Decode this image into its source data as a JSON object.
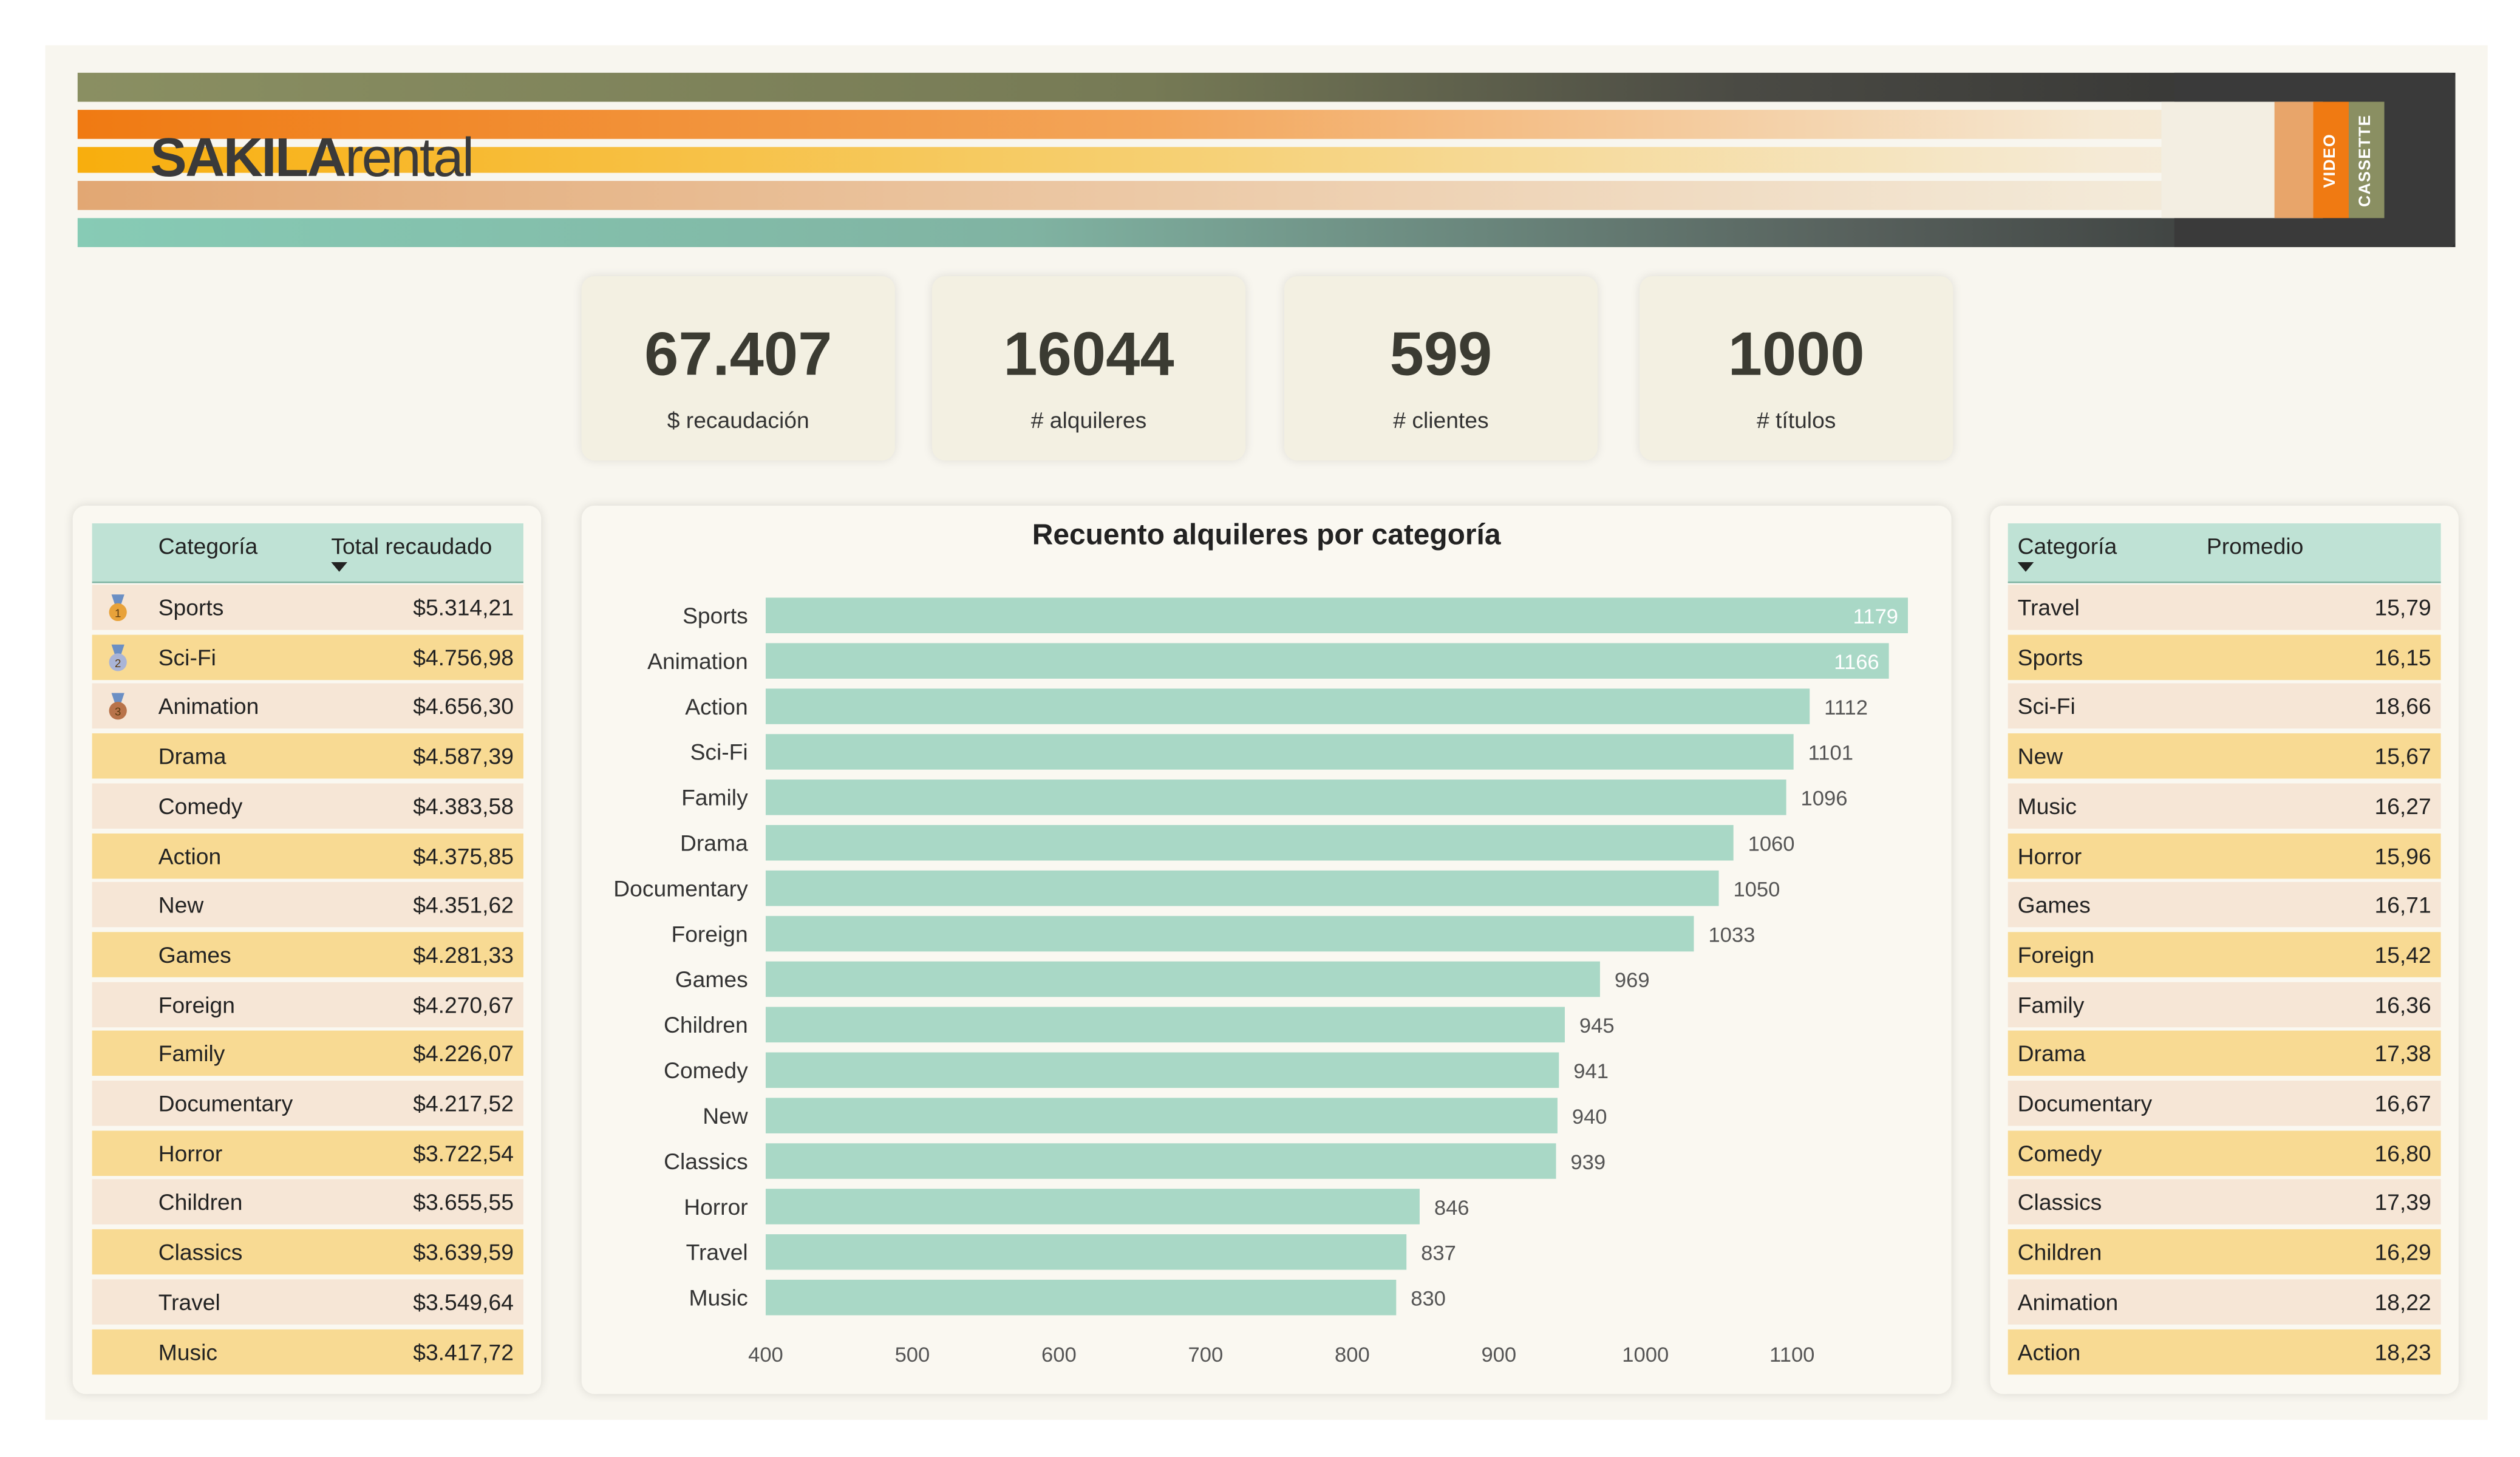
{
  "header": {
    "logo_bold": "SAKILA",
    "logo_light": "rental",
    "cassette_label_1": "VIDEO",
    "cassette_label_2": "CASSETTE"
  },
  "kpis": [
    {
      "value": "67.407",
      "label": "$ recaudación"
    },
    {
      "value": "16044",
      "label": "# alquileres"
    },
    {
      "value": "599",
      "label": "# clientes"
    },
    {
      "value": "1000",
      "label": "# títulos"
    }
  ],
  "revenue_table": {
    "col1": "Categoría",
    "col2": "Total recaudado",
    "sort_indicator": "sort-desc-icon",
    "rows": [
      {
        "medal": "gold-medal-icon",
        "category": "Sports",
        "total": "$5.314,21"
      },
      {
        "medal": "silver-medal-icon",
        "category": "Sci-Fi",
        "total": "$4.756,98"
      },
      {
        "medal": "bronze-medal-icon",
        "category": "Animation",
        "total": "$4.656,30"
      },
      {
        "category": "Drama",
        "total": "$4.587,39"
      },
      {
        "category": "Comedy",
        "total": "$4.383,58"
      },
      {
        "category": "Action",
        "total": "$4.375,85"
      },
      {
        "category": "New",
        "total": "$4.351,62"
      },
      {
        "category": "Games",
        "total": "$4.281,33"
      },
      {
        "category": "Foreign",
        "total": "$4.270,67"
      },
      {
        "category": "Family",
        "total": "$4.226,07"
      },
      {
        "category": "Documentary",
        "total": "$4.217,52"
      },
      {
        "category": "Horror",
        "total": "$3.722,54"
      },
      {
        "category": "Children",
        "total": "$3.655,55"
      },
      {
        "category": "Classics",
        "total": "$3.639,59"
      },
      {
        "category": "Travel",
        "total": "$3.549,64"
      },
      {
        "category": "Music",
        "total": "$3.417,72"
      }
    ]
  },
  "average_table": {
    "col1": "Categoría",
    "col2": "Promedio",
    "sort_indicator": "sort-desc-icon",
    "rows": [
      {
        "category": "Travel",
        "avg": "15,79"
      },
      {
        "category": "Sports",
        "avg": "16,15"
      },
      {
        "category": "Sci-Fi",
        "avg": "18,66"
      },
      {
        "category": "New",
        "avg": "15,67"
      },
      {
        "category": "Music",
        "avg": "16,27"
      },
      {
        "category": "Horror",
        "avg": "15,96"
      },
      {
        "category": "Games",
        "avg": "16,71"
      },
      {
        "category": "Foreign",
        "avg": "15,42"
      },
      {
        "category": "Family",
        "avg": "16,36"
      },
      {
        "category": "Drama",
        "avg": "17,38"
      },
      {
        "category": "Documentary",
        "avg": "16,67"
      },
      {
        "category": "Comedy",
        "avg": "16,80"
      },
      {
        "category": "Classics",
        "avg": "17,39"
      },
      {
        "category": "Children",
        "avg": "16,29"
      },
      {
        "category": "Animation",
        "avg": "18,22"
      },
      {
        "category": "Action",
        "avg": "18,23"
      }
    ]
  },
  "chart_data": {
    "type": "bar",
    "orientation": "horizontal",
    "title": "Recuento alquileres por categoría",
    "categories": [
      "Sports",
      "Animation",
      "Action",
      "Sci-Fi",
      "Family",
      "Drama",
      "Documentary",
      "Foreign",
      "Games",
      "Children",
      "Comedy",
      "New",
      "Classics",
      "Horror",
      "Travel",
      "Music"
    ],
    "values": [
      1179,
      1166,
      1112,
      1101,
      1096,
      1060,
      1050,
      1033,
      969,
      945,
      941,
      940,
      939,
      846,
      837,
      830
    ],
    "xlim": [
      400,
      1180
    ],
    "xticks": [
      "400",
      "500",
      "600",
      "700",
      "800",
      "900",
      "1000",
      "1100"
    ],
    "bar_color": "#a9d8c6",
    "grid": false
  },
  "colors": {
    "row_odd": "#f6e6d6",
    "row_even": "#f8da93",
    "header_mint": "#bfe2d5",
    "accent_orange": "#f07a12",
    "accent_olive": "#8a8f62"
  }
}
